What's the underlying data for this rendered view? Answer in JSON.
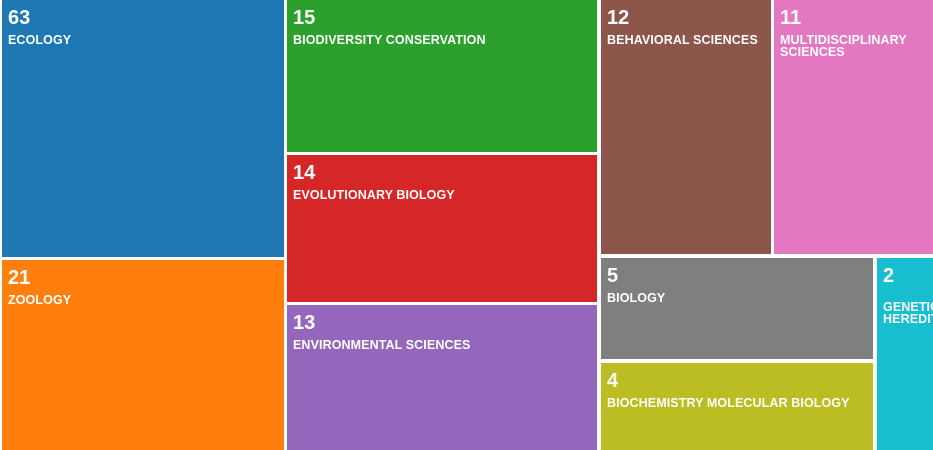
{
  "chart_data": {
    "type": "treemap",
    "items": [
      {
        "label": "ECOLOGY",
        "value": 63,
        "color": "#1f77b4"
      },
      {
        "label": "ZOOLOGY",
        "value": 21,
        "color": "#ff7f0e"
      },
      {
        "label": "BIODIVERSITY CONSERVATION",
        "value": 15,
        "color": "#2ca02c"
      },
      {
        "label": "EVOLUTIONARY BIOLOGY",
        "value": 14,
        "color": "#d62728"
      },
      {
        "label": "ENVIRONMENTAL SCIENCES",
        "value": 13,
        "color": "#9467bd"
      },
      {
        "label": "BEHAVIORAL SCIENCES",
        "value": 12,
        "color": "#8c564b"
      },
      {
        "label": "MULTIDISCIPLINARY SCIENCES",
        "value": 11,
        "color": "#e377c2"
      },
      {
        "label": "BIOLOGY",
        "value": 5,
        "color": "#7f7f7f"
      },
      {
        "label": "BIOCHEMISTRY MOLECULAR BIOLOGY",
        "value": 4,
        "color": "#bcbd22"
      },
      {
        "label": "GENETICS HEREDITY",
        "value": 2,
        "color": "#17becf"
      }
    ]
  }
}
